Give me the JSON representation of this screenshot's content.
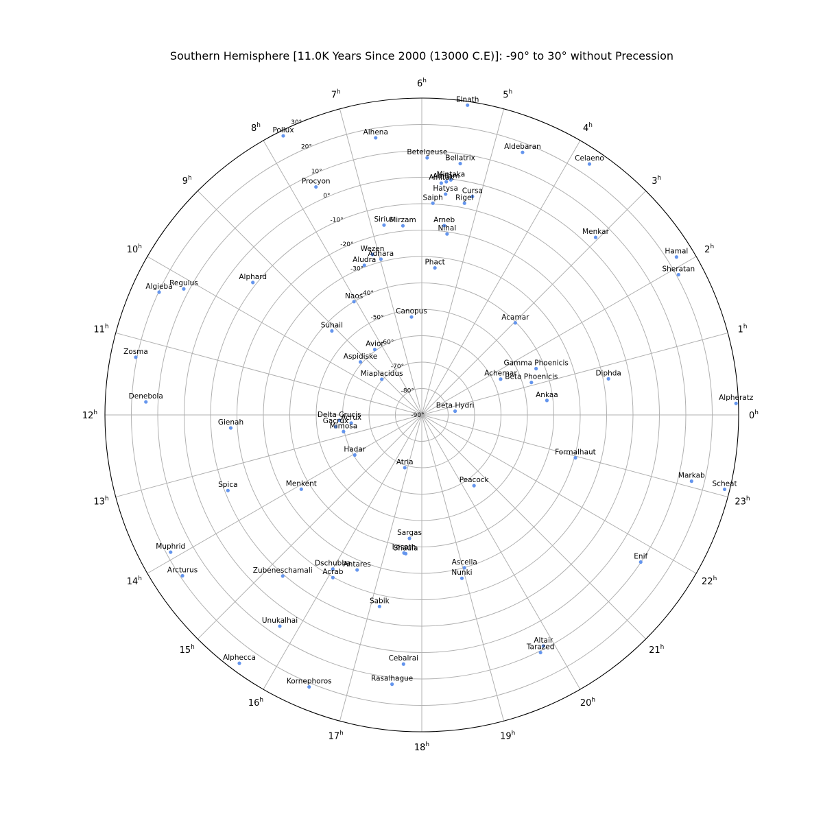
{
  "chart_data": {
    "type": "scatter",
    "projection": "polar",
    "hemisphere": "southern",
    "title": "Southern Hemisphere [11.0K Years Since 2000 (13000 C.E)]: -90° to 30° without Precession",
    "theta_unit": "h",
    "theta_ticks": [
      "0",
      "1",
      "2",
      "3",
      "4",
      "5",
      "6",
      "7",
      "8",
      "9",
      "10",
      "11",
      "12",
      "13",
      "14",
      "15",
      "16",
      "17",
      "18",
      "19",
      "20",
      "21",
      "22",
      "23"
    ],
    "r_ticks": [
      "-90°",
      "-80°",
      "-70°",
      "-60°",
      "-50°",
      "-40°",
      "-30°",
      "-20°",
      "-10°",
      "0°",
      "10°",
      "20°",
      "30°"
    ],
    "dec_range": [
      -90,
      30
    ],
    "marker_color": "#6495ed",
    "grid": true,
    "stars": [
      {
        "name": "Alpheratz",
        "ra": 0.14,
        "dec": 29.1
      },
      {
        "name": "Scheat",
        "ra": 23.08,
        "dec": 28.1
      },
      {
        "name": "Markab",
        "ra": 23.08,
        "dec": 15.2
      },
      {
        "name": "Enif",
        "ra": 21.74,
        "dec": 9.9
      },
      {
        "name": "Altair",
        "ra": 19.85,
        "dec": 8.9
      },
      {
        "name": "Tarazed",
        "ra": 19.77,
        "dec": 10.6
      },
      {
        "name": "Hamal",
        "ra": 2.12,
        "dec": 23.5
      },
      {
        "name": "Sheratan",
        "ra": 1.91,
        "dec": 20.8
      },
      {
        "name": "Menkar",
        "ra": 3.04,
        "dec": 4.1
      },
      {
        "name": "Celaeno",
        "ra": 3.75,
        "dec": 24.3
      },
      {
        "name": "Elnath",
        "ra": 5.44,
        "dec": 28.6
      },
      {
        "name": "Aldebaran",
        "ra": 4.6,
        "dec": 16.5
      },
      {
        "name": "Bellatrix",
        "ra": 5.42,
        "dec": 6.3
      },
      {
        "name": "Betelgeuse",
        "ra": 5.92,
        "dec": 7.4
      },
      {
        "name": "Alhena",
        "ra": 6.63,
        "dec": 16.4
      },
      {
        "name": "Pollux",
        "ra": 7.76,
        "dec": 28.0
      },
      {
        "name": "Procyon",
        "ra": 7.66,
        "dec": 5.2
      },
      {
        "name": "Mintaka",
        "ra": 5.53,
        "dec": -0.3
      },
      {
        "name": "Alnilam",
        "ra": 5.6,
        "dec": -1.2
      },
      {
        "name": "Alnitak",
        "ra": 5.68,
        "dec": -1.9
      },
      {
        "name": "Saiph",
        "ra": 5.8,
        "dec": -9.7
      },
      {
        "name": "Rigel",
        "ra": 5.24,
        "dec": -8.2
      },
      {
        "name": "Cursa",
        "ra": 5.13,
        "dec": -5.1
      },
      {
        "name": "Hatysa",
        "ra": 5.59,
        "dec": -5.9
      },
      {
        "name": "Nihal",
        "ra": 5.47,
        "dec": -20.8
      },
      {
        "name": "Arneb",
        "ra": 5.55,
        "dec": -17.8
      },
      {
        "name": "Mirzam",
        "ra": 6.38,
        "dec": -18.0
      },
      {
        "name": "Sirius",
        "ra": 6.75,
        "dec": -16.7
      },
      {
        "name": "Phact",
        "ra": 5.66,
        "dec": -34.1
      },
      {
        "name": "Wezen",
        "ra": 7.14,
        "dec": -26.4
      },
      {
        "name": "Adhara",
        "ra": 6.98,
        "dec": -29.0
      },
      {
        "name": "Aludra",
        "ra": 7.4,
        "dec": -29.3
      },
      {
        "name": "Naos",
        "ra": 8.06,
        "dec": -40.0
      },
      {
        "name": "Canopus",
        "ra": 6.4,
        "dec": -52.7
      },
      {
        "name": "Suhail",
        "ra": 9.13,
        "dec": -43.4
      },
      {
        "name": "Avior",
        "ra": 8.38,
        "dec": -59.5
      },
      {
        "name": "Aspidiske",
        "ra": 9.28,
        "dec": -59.3
      },
      {
        "name": "Miaplacidus",
        "ra": 9.22,
        "dec": -69.7
      },
      {
        "name": "Alphard",
        "ra": 9.46,
        "dec": -8.7
      },
      {
        "name": "Regulus",
        "ra": 10.14,
        "dec": 12.0
      },
      {
        "name": "Algieba",
        "ra": 10.33,
        "dec": 19.8
      },
      {
        "name": "Zosma",
        "ra": 11.24,
        "dec": 20.5
      },
      {
        "name": "Denebola",
        "ra": 11.82,
        "dec": 14.6
      },
      {
        "name": "Gienah",
        "ra": 12.26,
        "dec": -17.5
      },
      {
        "name": "Delta Crucis",
        "ra": 12.25,
        "dec": -58.7
      },
      {
        "name": "Gacrux",
        "ra": 12.52,
        "dec": -57.1
      },
      {
        "name": "Acrux",
        "ra": 12.44,
        "dec": -63.1
      },
      {
        "name": "Mimosa",
        "ra": 12.8,
        "dec": -59.7
      },
      {
        "name": "Hadar",
        "ra": 14.06,
        "dec": -60.4
      },
      {
        "name": "Menkent",
        "ra": 14.11,
        "dec": -36.4
      },
      {
        "name": "Spica",
        "ra": 13.42,
        "dec": -11.2
      },
      {
        "name": "Arcturus",
        "ra": 14.26,
        "dec": 19.2
      },
      {
        "name": "Muphrid",
        "ra": 13.91,
        "dec": 18.4
      },
      {
        "name": "Zubeneschamali",
        "ra": 15.28,
        "dec": -9.4
      },
      {
        "name": "Unukalhai",
        "ra": 15.74,
        "dec": 6.4
      },
      {
        "name": "Alphecca",
        "ra": 15.58,
        "dec": 26.7
      },
      {
        "name": "Kornephoros",
        "ra": 16.5,
        "dec": 21.5
      },
      {
        "name": "Dschubba",
        "ra": 16.0,
        "dec": -22.6
      },
      {
        "name": "Acrab",
        "ra": 16.09,
        "dec": -19.8
      },
      {
        "name": "Antares",
        "ra": 16.49,
        "dec": -26.4
      },
      {
        "name": "Sabik",
        "ra": 17.17,
        "dec": -15.7
      },
      {
        "name": "Rasalhague",
        "ra": 17.58,
        "dec": 12.6
      },
      {
        "name": "Cebalrai",
        "ra": 17.72,
        "dec": 4.6
      },
      {
        "name": "Sargas",
        "ra": 17.62,
        "dec": -43.0
      },
      {
        "name": "Lesath",
        "ra": 17.51,
        "dec": -37.3
      },
      {
        "name": "Shaula",
        "ra": 17.56,
        "dec": -37.1
      },
      {
        "name": "Atria",
        "ra": 16.81,
        "dec": -69.0
      },
      {
        "name": "Peacock",
        "ra": 20.43,
        "dec": -56.7
      },
      {
        "name": "Ascella",
        "ra": 19.04,
        "dec": -29.9
      },
      {
        "name": "Nunki",
        "ra": 18.92,
        "dec": -26.3
      },
      {
        "name": "Formalhaut",
        "ra": 22.96,
        "dec": -29.6
      },
      {
        "name": "Ankaa",
        "ra": 0.44,
        "dec": -42.3
      },
      {
        "name": "Diphda",
        "ra": 0.73,
        "dec": -18.0
      },
      {
        "name": "Acamar",
        "ra": 2.97,
        "dec": -40.3
      },
      {
        "name": "Achernar",
        "ra": 1.63,
        "dec": -57.2
      },
      {
        "name": "Gamma Phoenicis",
        "ra": 1.47,
        "dec": -43.3
      },
      {
        "name": "Beta Phoenicis",
        "ra": 1.1,
        "dec": -46.7
      },
      {
        "name": "Beta Hydri",
        "ra": 0.43,
        "dec": -77.3
      }
    ]
  }
}
